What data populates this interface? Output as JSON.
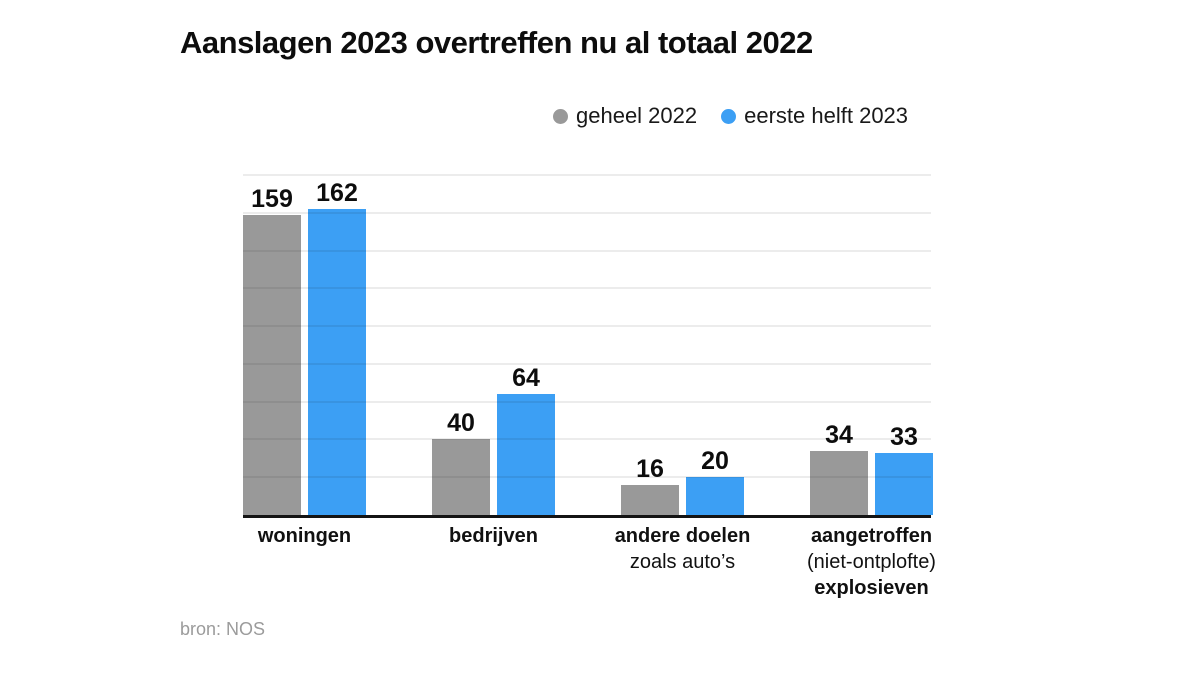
{
  "title": "Aanslagen 2023 overtreffen nu al totaal 2022",
  "source": "bron: NOS",
  "legend": [
    {
      "label": "geheel 2022",
      "color": "#999999"
    },
    {
      "label": "eerste helft 2023",
      "color": "#3c9ff4"
    }
  ],
  "colors": {
    "series_2022": "#999999",
    "series_2023": "#3c9ff4",
    "axis": "#141414",
    "gridline_rgba": "rgba(17,17,17,0.08)",
    "title_text": "#0d0d0d",
    "source_text": "#9b9b9b"
  },
  "chart_data": {
    "type": "bar",
    "title": "Aanslagen 2023 overtreffen nu al totaal 2022",
    "categories": [
      {
        "id": "woningen",
        "lines": [
          {
            "text": "woningen",
            "bold": true
          }
        ]
      },
      {
        "id": "bedrijven",
        "lines": [
          {
            "text": "bedrijven",
            "bold": true
          }
        ]
      },
      {
        "id": "andere-doelen",
        "lines": [
          {
            "text": "andere doelen",
            "bold": true
          },
          {
            "text": "zoals auto’s",
            "bold": false
          }
        ]
      },
      {
        "id": "explosieven",
        "lines": [
          {
            "text": "aangetroffen",
            "bold": true
          },
          {
            "text": "(niet-ontplofte)",
            "bold": false
          },
          {
            "text": "explosieven",
            "bold": true
          }
        ]
      }
    ],
    "series": [
      {
        "name": "geheel 2022",
        "color": "#999999",
        "values": [
          159,
          40,
          16,
          34
        ]
      },
      {
        "name": "eerste helft 2023",
        "color": "#3c9ff4",
        "values": [
          162,
          64,
          20,
          33
        ]
      }
    ],
    "ylim": [
      0,
      180
    ],
    "gridline_step": 20,
    "grid": true,
    "legend_position": "top",
    "value_labels": true,
    "xlabel": "",
    "ylabel": ""
  }
}
